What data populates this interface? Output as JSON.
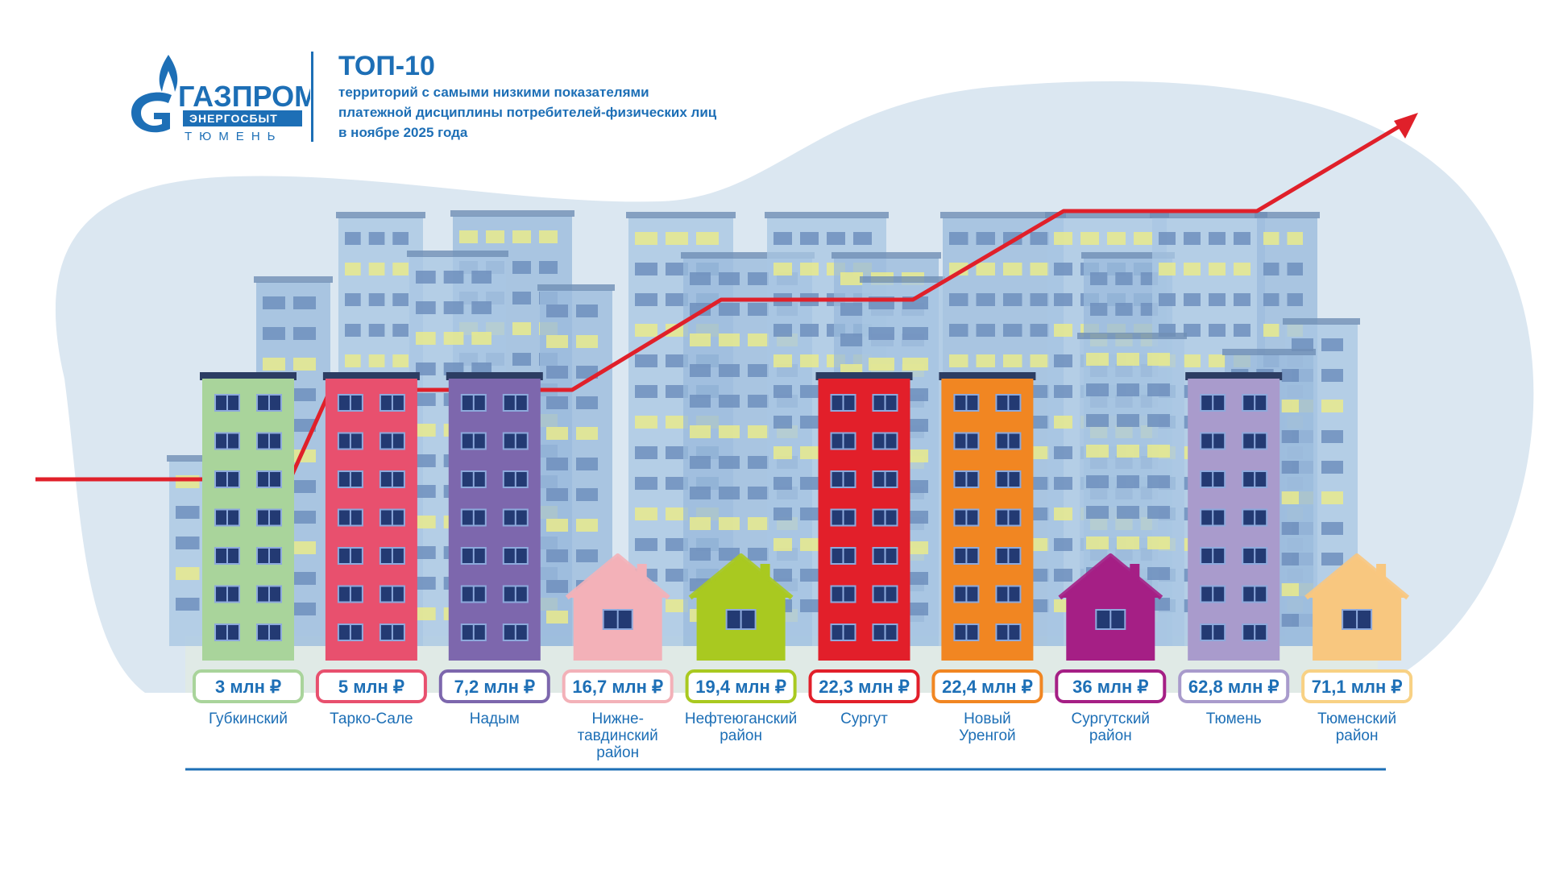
{
  "header": {
    "brand_name": "ГАЗПРОМ",
    "brand_sub": "ЭНЕРГОСБЫТ",
    "brand_city": "ТЮМЕНЬ",
    "title": "ТОП-10",
    "subtitle_lines": [
      "территорий с самыми низкими показателями",
      "платежной дисциплины потребителей-физических лиц",
      "в ноябре 2025 года"
    ]
  },
  "colors": {
    "brand_blue": "#1d6fb6",
    "trend_line": "#e0202a",
    "blob": "#dbe7f1"
  },
  "chart_data": {
    "type": "bar",
    "unit": "млн ₽",
    "categories": [
      "Губкинский",
      "Тарко-Сале",
      "Надым",
      "Нижне-\nтавдинский\nрайон",
      "Нефтеюганский\nрайон",
      "Сургут",
      "Новый\nУренгой",
      "Сургутский\nрайон",
      "Тюмень",
      "Тюменский\nрайон"
    ],
    "values": [
      3,
      5,
      7.2,
      16.7,
      19.4,
      22.3,
      22.4,
      36,
      62.8,
      71.1
    ],
    "value_labels": [
      "3 млн ₽",
      "5 млн ₽",
      "7,2 млн ₽",
      "16,7 млн ₽",
      "19,4 млн ₽",
      "22,3 млн ₽",
      "22,4 млн ₽",
      "36 млн ₽",
      "62,8 млн ₽",
      "71,1 млн ₽"
    ],
    "item_shapes": [
      "building",
      "building",
      "building",
      "house",
      "house",
      "building",
      "building",
      "house",
      "building",
      "house"
    ],
    "item_colors": [
      "#a9d49b",
      "#e8506e",
      "#7d67ad",
      "#f3b1b8",
      "#a9c920",
      "#e21f2a",
      "#f18622",
      "#a51f85",
      "#a99bcc",
      "#f8c77f"
    ],
    "label_border_colors": [
      "#a9d49b",
      "#e8506e",
      "#7d67ad",
      "#f3b1b8",
      "#a9c920",
      "#e21f2a",
      "#f18622",
      "#a51f85",
      "#a99bcc",
      "#f8d184"
    ],
    "trend": "increasing"
  }
}
